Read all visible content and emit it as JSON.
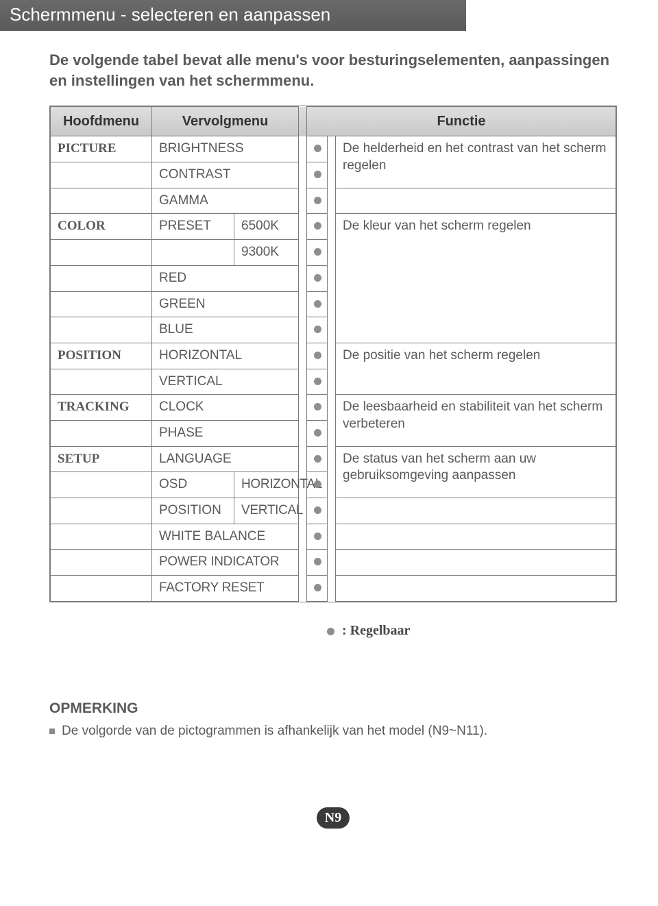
{
  "header": {
    "title": "Schermmenu - selecteren en aanpassen"
  },
  "intro": {
    "line1": "De volgende tabel bevat alle menu's voor besturingselementen, aanpassingen",
    "line2": "en instellingen van het schermmenu."
  },
  "table": {
    "head": {
      "main": "Hoofdmenu",
      "sub": "Vervolgmenu",
      "func": "Functie"
    },
    "groups": {
      "picture": {
        "name": "PICTURE",
        "items": {
          "brightness": "BRIGHTNESS",
          "contrast": "CONTRAST",
          "gamma": "GAMMA"
        },
        "func": "De helderheid en het contrast van het scherm regelen"
      },
      "color": {
        "name": "COLOR",
        "items": {
          "preset": "PRESET",
          "k6500": "6500K",
          "k9300": "9300K",
          "red": "RED",
          "green": "GREEN",
          "blue": "BLUE"
        },
        "func": "De kleur van het scherm regelen"
      },
      "position": {
        "name": "POSITION",
        "items": {
          "horizontal": "HORIZONTAL",
          "vertical": "VERTICAL"
        },
        "func": "De positie van het scherm regelen"
      },
      "tracking": {
        "name": "TRACKING",
        "items": {
          "clock": "CLOCK",
          "phase": "PHASE"
        },
        "func": "De leesbaarheid en stabiliteit van het scherm verbeteren"
      },
      "setup": {
        "name": "SETUP",
        "items": {
          "language": "LANGUAGE",
          "osd": "OSD",
          "osd_h": "HORIZONTAL",
          "position": "POSITION",
          "pos_v": "VERTICAL",
          "white_balance": "WHITE BALANCE",
          "power_indicator": "POWER INDICATOR",
          "factory_reset": "FACTORY RESET"
        },
        "func": "De status van het scherm aan uw gebruiksomgeving aanpassen"
      }
    }
  },
  "legend": {
    "text": ": Regelbaar"
  },
  "note": {
    "title": "OPMERKING",
    "body": "De volgorde van de pictogrammen is afhankelijk van het model (N9~N11)."
  },
  "page": {
    "number": "N9"
  },
  "style": {
    "header_bg_from": "#6a6a6a",
    "header_bg_to": "#5a5a5a",
    "header_fg": "#ffffff",
    "body_text": "#5a5a5a",
    "border": "#7a7a7a",
    "dot": "#8e8e8e",
    "head_row_from": "#dedede",
    "head_row_to": "#c8c8c8",
    "page_badge_bg": "#3a3a3a"
  }
}
